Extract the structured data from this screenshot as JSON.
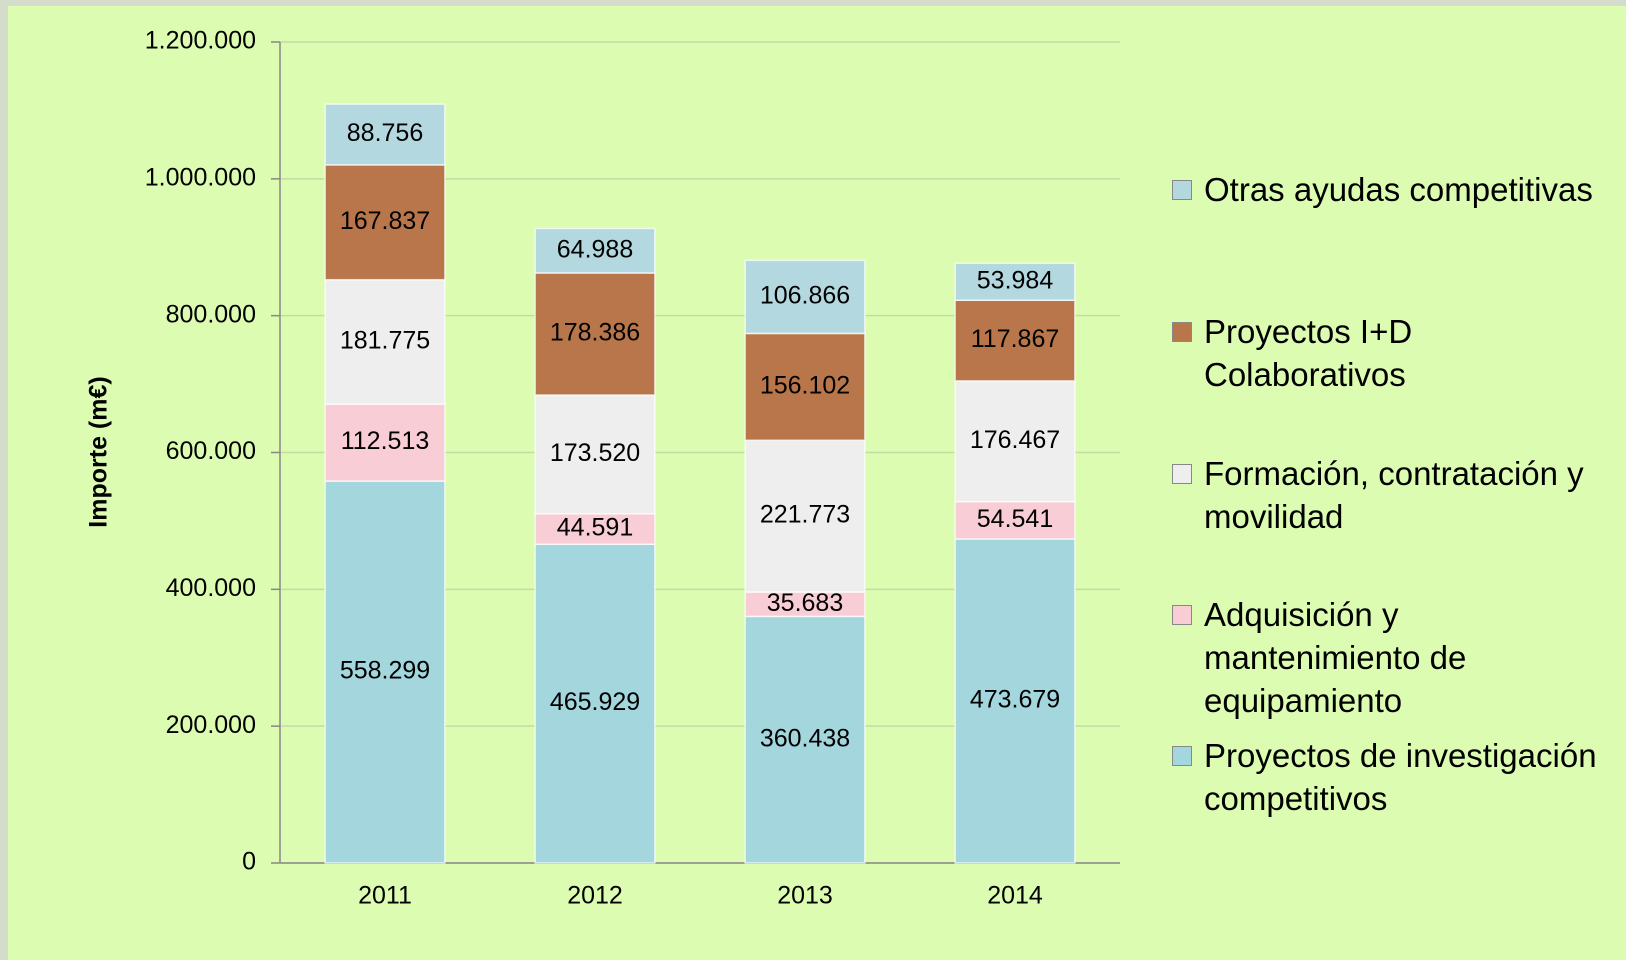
{
  "chart_data": {
    "type": "stacked_bar",
    "y_axis_label": "Importe (m€)",
    "categories": [
      "2011",
      "2012",
      "2013",
      "2014"
    ],
    "series": [
      {
        "name": "Proyectos de investigación competitivos",
        "color": "#a3d6dd",
        "values": [
          558299,
          465929,
          360438,
          473679
        ],
        "value_labels": [
          "558.299",
          "465.929",
          "360.438",
          "473.679"
        ]
      },
      {
        "name": "Adquisición y mantenimiento de equipamiento",
        "color": "#f8cdd6",
        "values": [
          112513,
          44591,
          35683,
          54541
        ],
        "value_labels": [
          "112.513",
          "44.591",
          "35.683",
          "54.541"
        ]
      },
      {
        "name": "Formación, contratación y movilidad",
        "color": "#eeeeee",
        "values": [
          181775,
          173520,
          221773,
          176467
        ],
        "value_labels": [
          "181.775",
          "173.520",
          "221.773",
          "176.467"
        ]
      },
      {
        "name": "Proyectos I+D Colaborativos",
        "color": "#b8764a",
        "values": [
          167837,
          178386,
          156102,
          117867
        ],
        "value_labels": [
          "167.837",
          "178.386",
          "156.102",
          "117.867"
        ]
      },
      {
        "name": "Otras ayudas competitivas",
        "color": "#b3d8e0",
        "values": [
          88756,
          64988,
          106866,
          53984
        ],
        "value_labels": [
          "88.756",
          "64.988",
          "106.866",
          "53.984"
        ]
      }
    ],
    "ylim": [
      0,
      1200000
    ],
    "yticks": [
      0,
      {
        "value": 200000,
        "label": "200.000"
      },
      {
        "value": 400000,
        "label": "400.000"
      },
      {
        "value": 600000,
        "label": "600.000"
      },
      {
        "value": 800000,
        "label": "800.000"
      },
      {
        "value": 1000000,
        "label": "1.000.000"
      },
      {
        "value": 1200000,
        "label": "1.200.000"
      }
    ],
    "grid": true,
    "legend": "right"
  }
}
